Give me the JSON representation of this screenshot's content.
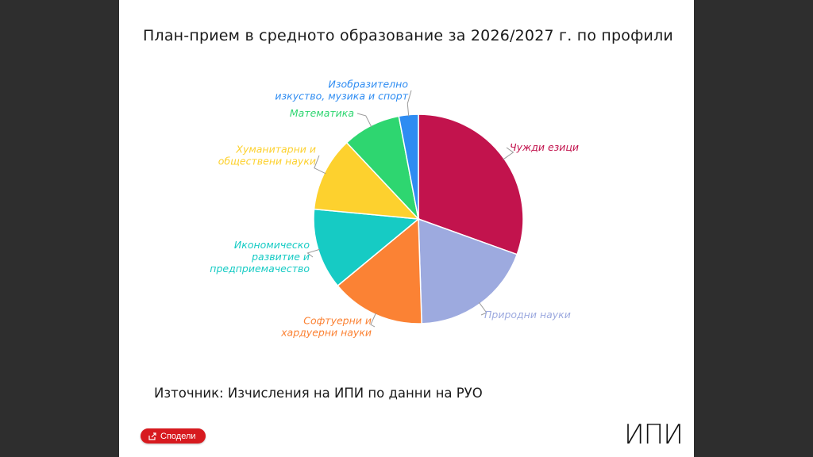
{
  "chart_data": {
    "type": "pie",
    "title": "План-прием в средното образование за 2026/2027 г. по профили",
    "slices": [
      {
        "label": "Чужди езици",
        "value": 30.5,
        "color": "#c2134d"
      },
      {
        "label": "Природни науки",
        "value": 19.0,
        "color": "#9daadf"
      },
      {
        "label": "Софтуерни и хардуерни науки",
        "label_lines": [
          "Софтуерни и",
          "хардуерни науки"
        ],
        "value": 14.5,
        "color": "#fb8234"
      },
      {
        "label": "Икономическо развитие и предприемачество",
        "label_lines": [
          "Икономическо",
          "развитие и",
          "предприемачество"
        ],
        "value": 12.5,
        "color": "#16cbc4"
      },
      {
        "label": "Хуманитарни и обществени науки",
        "label_lines": [
          "Хуманитарни и",
          "обществени науки"
        ],
        "value": 11.5,
        "color": "#fdd12e"
      },
      {
        "label": "Математика",
        "value": 9.0,
        "color": "#2ed670"
      },
      {
        "label": "Изобразително изкуство, музика и спорт",
        "label_lines": [
          "Изобразително",
          "изкуство, музика и спорт"
        ],
        "value": 3.0,
        "color": "#2e8cf2"
      }
    ]
  },
  "footer": {
    "source": "Източник: Изчисления на ИПИ по данни на РУО",
    "share_label": "Сподели",
    "logo_text": "ИПИ"
  },
  "icons": {
    "share": "share-icon"
  }
}
